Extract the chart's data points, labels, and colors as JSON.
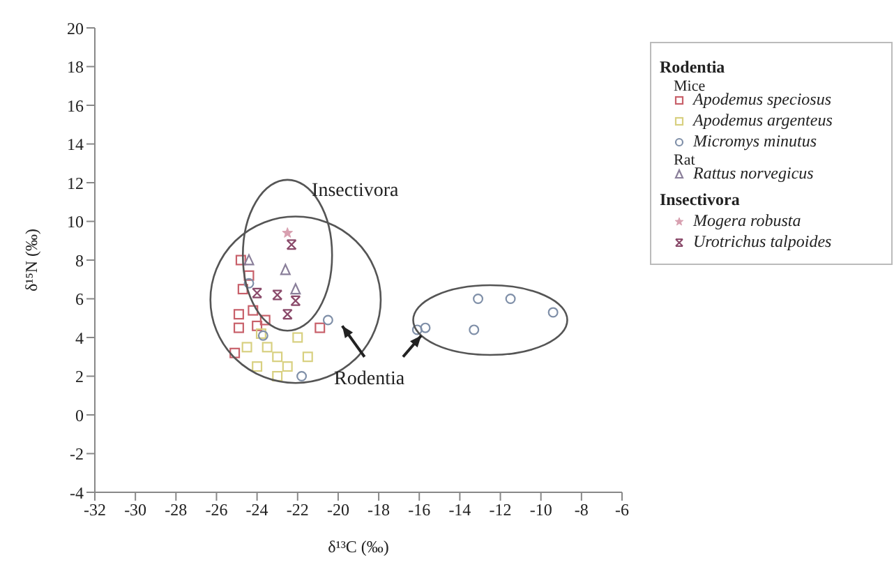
{
  "chart_data": {
    "type": "scatter",
    "xlabel": "δ¹³C (‰)",
    "ylabel": "δ¹⁵N (‰)",
    "xlim": [
      -32,
      -6
    ],
    "xticks": [
      -32,
      -30,
      -28,
      -26,
      -24,
      -22,
      -20,
      -18,
      -16,
      -14,
      -12,
      -10,
      -8,
      -6
    ],
    "ylim": [
      -4,
      20
    ],
    "yticks": [
      -4,
      -2,
      0,
      2,
      4,
      6,
      8,
      10,
      12,
      14,
      16,
      18,
      20
    ],
    "grid": false,
    "legend": "right",
    "annotations": [
      "Insectivora",
      "Rodentia",
      "Rodentia",
      "Mice",
      "Rat",
      "Insectivora"
    ],
    "series": [
      {
        "name": "Apodemus speciosus",
        "color": "#c8606a",
        "marker": "square",
        "x": [
          -24.8,
          -24.4,
          -24.7,
          -24.9,
          -24.0,
          -24.9,
          -25.1,
          -20.9,
          -24.2,
          -23.6
        ],
        "values": [
          8.0,
          7.2,
          6.5,
          5.2,
          4.6,
          4.5,
          3.2,
          4.5,
          5.4,
          4.9
        ]
      },
      {
        "name": "Apodemus argenteus",
        "color": "#d8d080",
        "marker": "square",
        "x": [
          -23.5,
          -23.0,
          -22.5,
          -24.0,
          -23.0,
          -22.0,
          -21.5,
          -24.5,
          -23.8
        ],
        "values": [
          3.5,
          3.0,
          2.5,
          2.5,
          2.0,
          4.0,
          3.0,
          3.5,
          4.2
        ]
      },
      {
        "name": "Micromys minutus",
        "color": "#7f8fa8",
        "marker": "circle",
        "x": [
          -13.1,
          -11.5,
          -9.4,
          -13.3,
          -15.7,
          -16.1,
          -24.4,
          -20.5,
          -23.7,
          -21.8
        ],
        "values": [
          6.0,
          6.0,
          5.3,
          4.4,
          4.5,
          4.4,
          6.8,
          4.9,
          4.1,
          2.0
        ]
      },
      {
        "name": "Rattus norvegicus",
        "color": "#8a7f9a",
        "marker": "triangle",
        "x": [
          -24.4,
          -22.6,
          -22.1
        ],
        "values": [
          8.0,
          7.5,
          6.5
        ]
      },
      {
        "name": "Mogera robusta",
        "color": "#d8a0b0",
        "marker": "star",
        "x": [
          -22.5
        ],
        "values": [
          9.4
        ]
      },
      {
        "name": "Urotrichus  talpoides",
        "color": "#8a4a6a",
        "marker": "cross",
        "x": [
          -22.3,
          -24.0,
          -23.0,
          -22.1,
          -22.5
        ],
        "values": [
          8.8,
          6.3,
          6.2,
          5.9,
          5.2
        ]
      }
    ]
  }
}
